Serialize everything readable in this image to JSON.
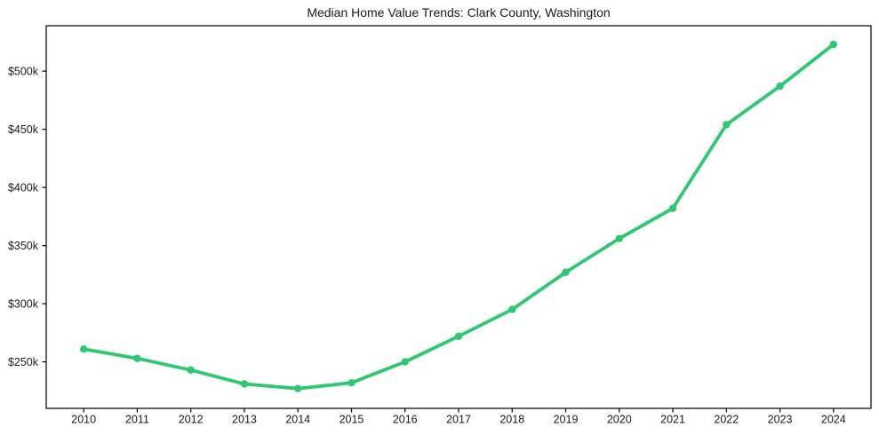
{
  "chart_data": {
    "type": "line",
    "title": "Median Home Value Trends: Clark County, Washington",
    "x": [
      2010,
      2011,
      2012,
      2013,
      2014,
      2015,
      2016,
      2017,
      2018,
      2019,
      2020,
      2021,
      2022,
      2023,
      2024
    ],
    "x_tick_labels": [
      "2010",
      "2011",
      "2012",
      "2013",
      "2014",
      "2015",
      "2016",
      "2017",
      "2018",
      "2019",
      "2020",
      "2021",
      "2022",
      "2023",
      "2024"
    ],
    "series": [
      {
        "name": "Median Home Value",
        "values": [
          261000,
          253000,
          243000,
          231000,
          227000,
          232000,
          250000,
          272000,
          295000,
          327000,
          356000,
          382000,
          454000,
          487000,
          523000
        ]
      }
    ],
    "xlabel": "",
    "ylabel": "",
    "y_tick_values": [
      250000,
      300000,
      350000,
      400000,
      450000,
      500000
    ],
    "y_tick_labels": [
      "$250k",
      "$300k",
      "$350k",
      "$400k",
      "$450k",
      "$500k"
    ],
    "xlim": [
      2009.3,
      2024.7
    ],
    "ylim": [
      210000,
      539000
    ],
    "grid": false,
    "legend_position": "none",
    "line_color": "#2ec873",
    "marker": "circle",
    "background_color": "#ffffff",
    "axis_color": "#000000",
    "text_color": "#1a1a1a"
  }
}
